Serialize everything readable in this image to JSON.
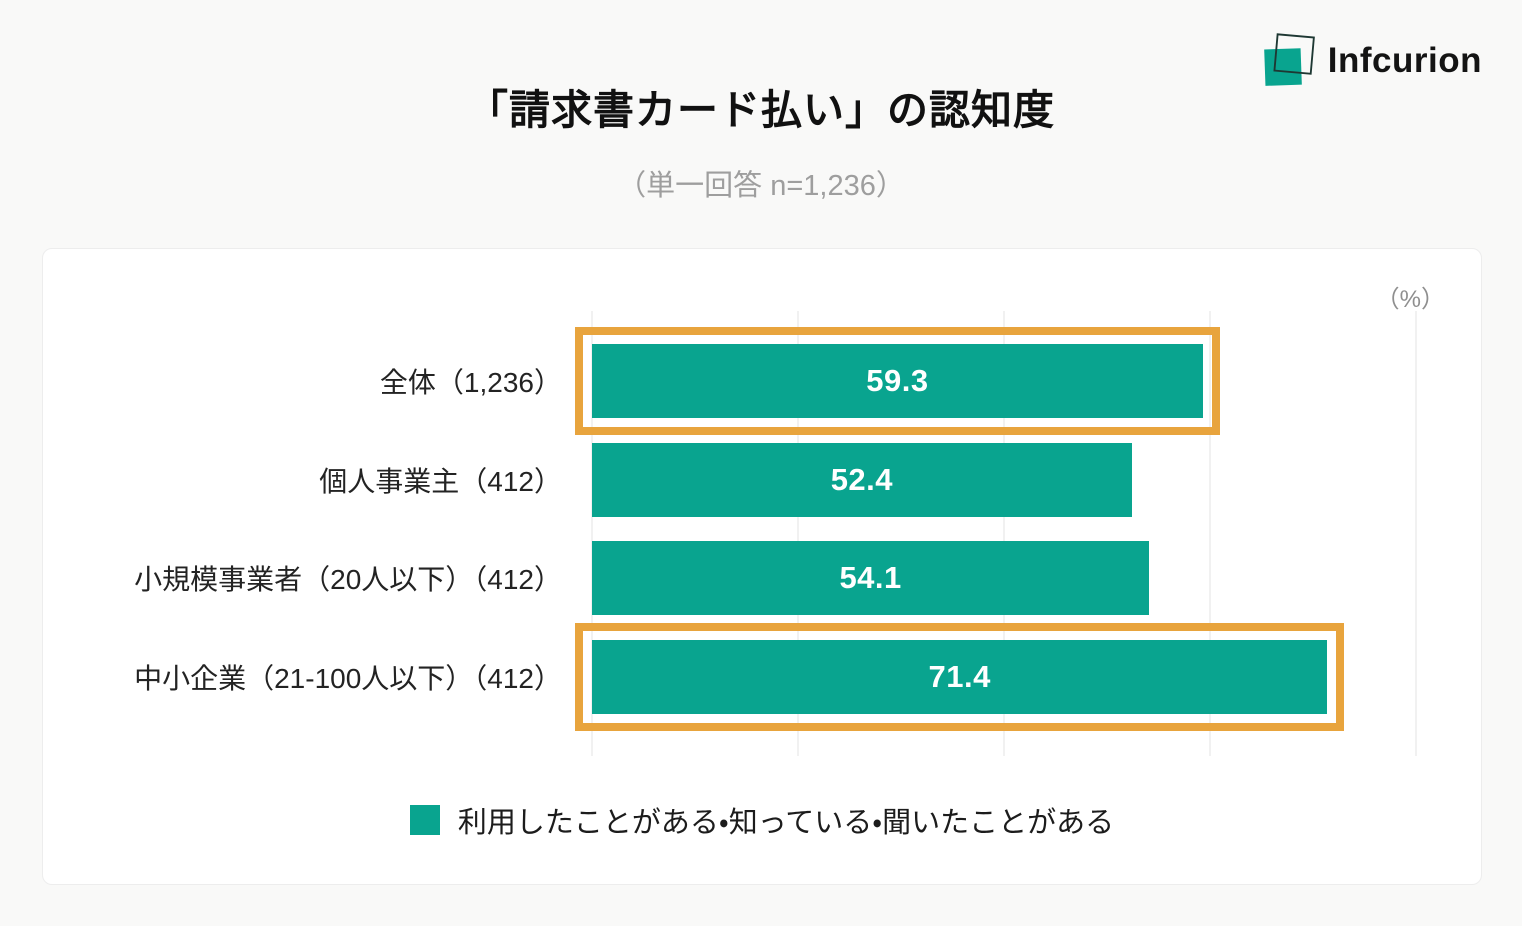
{
  "header": {
    "title": "「請求書カード払い」の認知度",
    "subtitle": "（単一回答 n=1,236）"
  },
  "logo": {
    "text": "Infcurion",
    "mark": "overlapping-squares-icon"
  },
  "chart_data": {
    "type": "bar",
    "orientation": "horizontal",
    "title": "「請求書カード払い」の認知度",
    "subtitle": "（単一回答 n=1,236）",
    "unit_label": "（%）",
    "categories": [
      "全体（1,236）",
      "個人事業主（412）",
      "小規模事業者（20人以下）（412）",
      "中小企業（21-100人以下）（412）"
    ],
    "values": [
      59.3,
      52.4,
      54.1,
      71.4
    ],
    "highlighted": [
      true,
      false,
      false,
      true
    ],
    "xlim": [
      0,
      80
    ],
    "gridline_step": 20,
    "grid": true,
    "tick_labels_shown": false,
    "legend_position": "bottom-center",
    "legend_label": "利用したことがある・知っている・聞いたことがある"
  },
  "colors": {
    "teal": "#09A48F",
    "orange": "#E8A43D",
    "grid": "#E3E3E3",
    "page_bg": "#F9F9F8",
    "card_bg": "#FFFFFF",
    "card_border": "#EDEDED",
    "title_text": "#111111",
    "subtitle_text": "#9E9E9E",
    "label_text": "#232323",
    "value_text": "#FFFFFF",
    "unit_text": "#8F8F8F",
    "legend_text": "#1C1C1C",
    "logo_text": "#141414",
    "logo_outline": "#1E3833"
  }
}
